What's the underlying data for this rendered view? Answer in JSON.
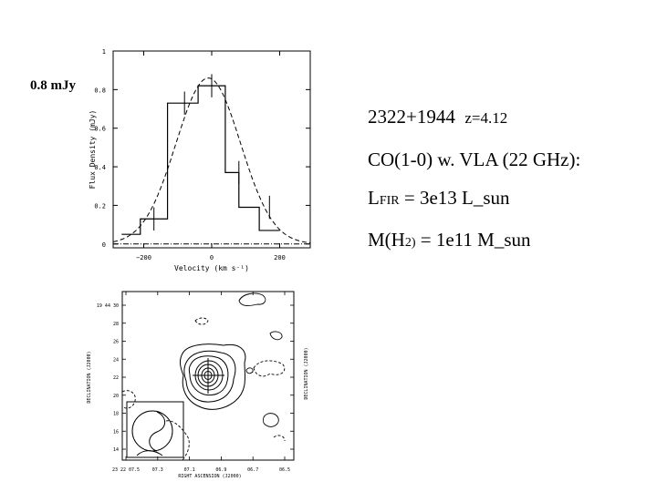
{
  "flux_label": "0.8 mJy",
  "source": {
    "name": "2322+1944",
    "redshift": "z=4.12",
    "observation": "CO(1-0) w. VLA (22 GHz):",
    "lfir": {
      "prefix": "L",
      "sub": "FIR",
      "suffix": " = 3e13 L_sun"
    },
    "mass": {
      "prefix": "M(H",
      "sub": "2)",
      "suffix": " = 1e11 M_sun"
    }
  },
  "chart_data": [
    {
      "type": "step",
      "title": "",
      "xlabel": "Velocity (km s⁻¹)",
      "ylabel": "Flux Density (mJy)",
      "xlim": [
        -290,
        290
      ],
      "ylim": [
        -0.02,
        1.0
      ],
      "xticks": [
        -200,
        0,
        200
      ],
      "xtick_labels": [
        "−200",
        "0",
        "200"
      ],
      "yticks": [
        0,
        0.2,
        0.4,
        0.6,
        0.8,
        1
      ],
      "ytick_labels": [
        "0",
        "0.2",
        "0.4",
        "0.6",
        "0.8",
        "1"
      ],
      "histogram": {
        "edges": [
          -265,
          -210,
          -130,
          -90,
          -40,
          40,
          80,
          140,
          200
        ],
        "values": [
          0.05,
          0.13,
          0.73,
          0.73,
          0.82,
          0.37,
          0.19,
          0.07
        ]
      },
      "error_points": [
        {
          "x": -170,
          "y": 0.13,
          "err": 0.06
        },
        {
          "x": -80,
          "y": 0.73,
          "err": 0.06
        },
        {
          "x": 0,
          "y": 0.82,
          "err": 0.06
        },
        {
          "x": 80,
          "y": 0.37,
          "err": 0.06
        },
        {
          "x": 170,
          "y": 0.19,
          "err": 0.06
        }
      ],
      "gaussian_fit": {
        "peak": 0.86,
        "center": -10,
        "sigma": 95
      },
      "baseline": 0
    },
    {
      "type": "contour",
      "title": "",
      "xlabel": "RIGHT ASCENSION (J2000)",
      "ylabel": "DECLINATION (J2000)",
      "ylabel_right": "DECLINATION (J2000)",
      "xtick_labels": [
        "23 22 07.5",
        "07.3",
        "07.1",
        "06.9",
        "06.7",
        "06.5"
      ],
      "ytick_labels": [
        "19 44 30",
        "28",
        "26",
        "24",
        "22",
        "20",
        "18",
        "16",
        "14"
      ],
      "source_position": "central cross",
      "beam": "boxed ellipse, lower-left corner"
    }
  ]
}
